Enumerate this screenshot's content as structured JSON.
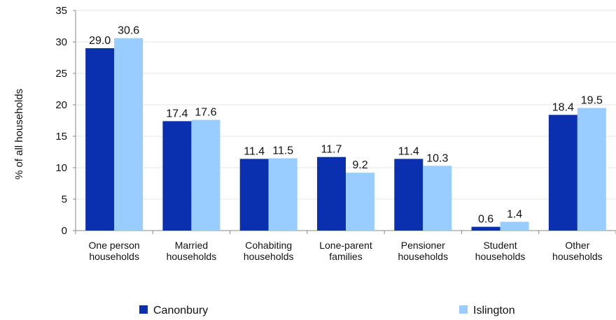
{
  "chart_data": {
    "type": "bar",
    "ylabel": "% of all households",
    "ylim": [
      0,
      35
    ],
    "yticks": [
      0,
      5,
      10,
      15,
      20,
      25,
      30,
      35
    ],
    "grid": false,
    "legend_position": "bottom",
    "categories": [
      [
        "One person",
        "households"
      ],
      [
        "Married",
        "households"
      ],
      [
        "Cohabiting",
        "households"
      ],
      [
        "Lone-parent",
        "families"
      ],
      [
        "Pensioner",
        "households"
      ],
      [
        "Student",
        "households"
      ],
      [
        "Other",
        "households"
      ]
    ],
    "series": [
      {
        "name": "Canonbury",
        "color": "#0a30b0",
        "values": [
          29.0,
          17.4,
          11.4,
          11.7,
          11.4,
          0.6,
          18.4
        ]
      },
      {
        "name": "Islington",
        "color": "#99ccff",
        "values": [
          30.6,
          17.6,
          11.5,
          9.2,
          10.3,
          1.4,
          19.5
        ]
      }
    ]
  }
}
